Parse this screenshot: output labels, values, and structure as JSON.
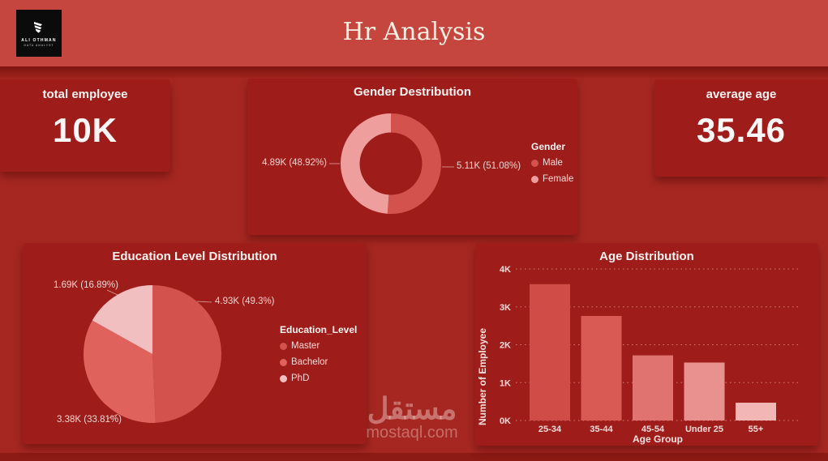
{
  "header": {
    "title": "Hr Analysis",
    "logo": {
      "line1": "ALI OTHMAN",
      "line2": "DATA ANALYST"
    }
  },
  "kpi_cards": {
    "total_employee": {
      "label": "total employee",
      "value": "10K"
    },
    "average_age": {
      "label": "average age",
      "value": "35.46"
    }
  },
  "watermark": {
    "arabic": "مستقل",
    "latin": "mostaql.com"
  },
  "colors": {
    "header_bg": "#c5463f",
    "page_bg": "#a62722",
    "card_bg": "#9e1d1a",
    "male": "#d4524d",
    "female": "#ef9e9e",
    "master": "#d4524d",
    "bachelor": "#df625d",
    "phd": "#f2bfc0",
    "grid_dots": "#f0b4af",
    "text_light": "#fbf2f1"
  },
  "chart_data": [
    {
      "id": "gender",
      "type": "donut",
      "title": "Gender Destribution",
      "legend_title": "Gender",
      "legend_position": "right",
      "series": [
        {
          "name": "Male",
          "value": 5110,
          "pct": 51.08,
          "label": "5.11K (51.08%)",
          "color": "#d4524d"
        },
        {
          "name": "Female",
          "value": 4890,
          "pct": 48.92,
          "label": "4.89K (48.92%)",
          "color": "#ef9e9e"
        }
      ]
    },
    {
      "id": "education",
      "type": "pie",
      "title": "Education Level Distribution",
      "legend_title": "Education_Level",
      "legend_position": "right",
      "series": [
        {
          "name": "Master",
          "value": 4930,
          "pct": 49.3,
          "label": "4.93K (49.3%)",
          "color": "#d4524d"
        },
        {
          "name": "Bachelor",
          "value": 3380,
          "pct": 33.81,
          "label": "3.38K (33.81%)",
          "color": "#df625d"
        },
        {
          "name": "PhD",
          "value": 1690,
          "pct": 16.89,
          "label": "1.69K (16.89%)",
          "color": "#f2bfc0"
        }
      ]
    },
    {
      "id": "age",
      "type": "bar",
      "title": "Age Distribution",
      "xlabel": "Age Group",
      "ylabel": "Number of Employee",
      "categories": [
        "25-34",
        "35-44",
        "45-54",
        "Under 25",
        "55+"
      ],
      "values": [
        3600,
        2760,
        1720,
        1530,
        470
      ],
      "ylim": [
        0,
        4000
      ],
      "yticks": [
        "0K",
        "1K",
        "2K",
        "3K",
        "4K"
      ],
      "grid": "dotted horizontal",
      "bar_colors": [
        "#cf4c47",
        "#d95954",
        "#e0736f",
        "#e8918e",
        "#f2b7b5"
      ]
    }
  ]
}
